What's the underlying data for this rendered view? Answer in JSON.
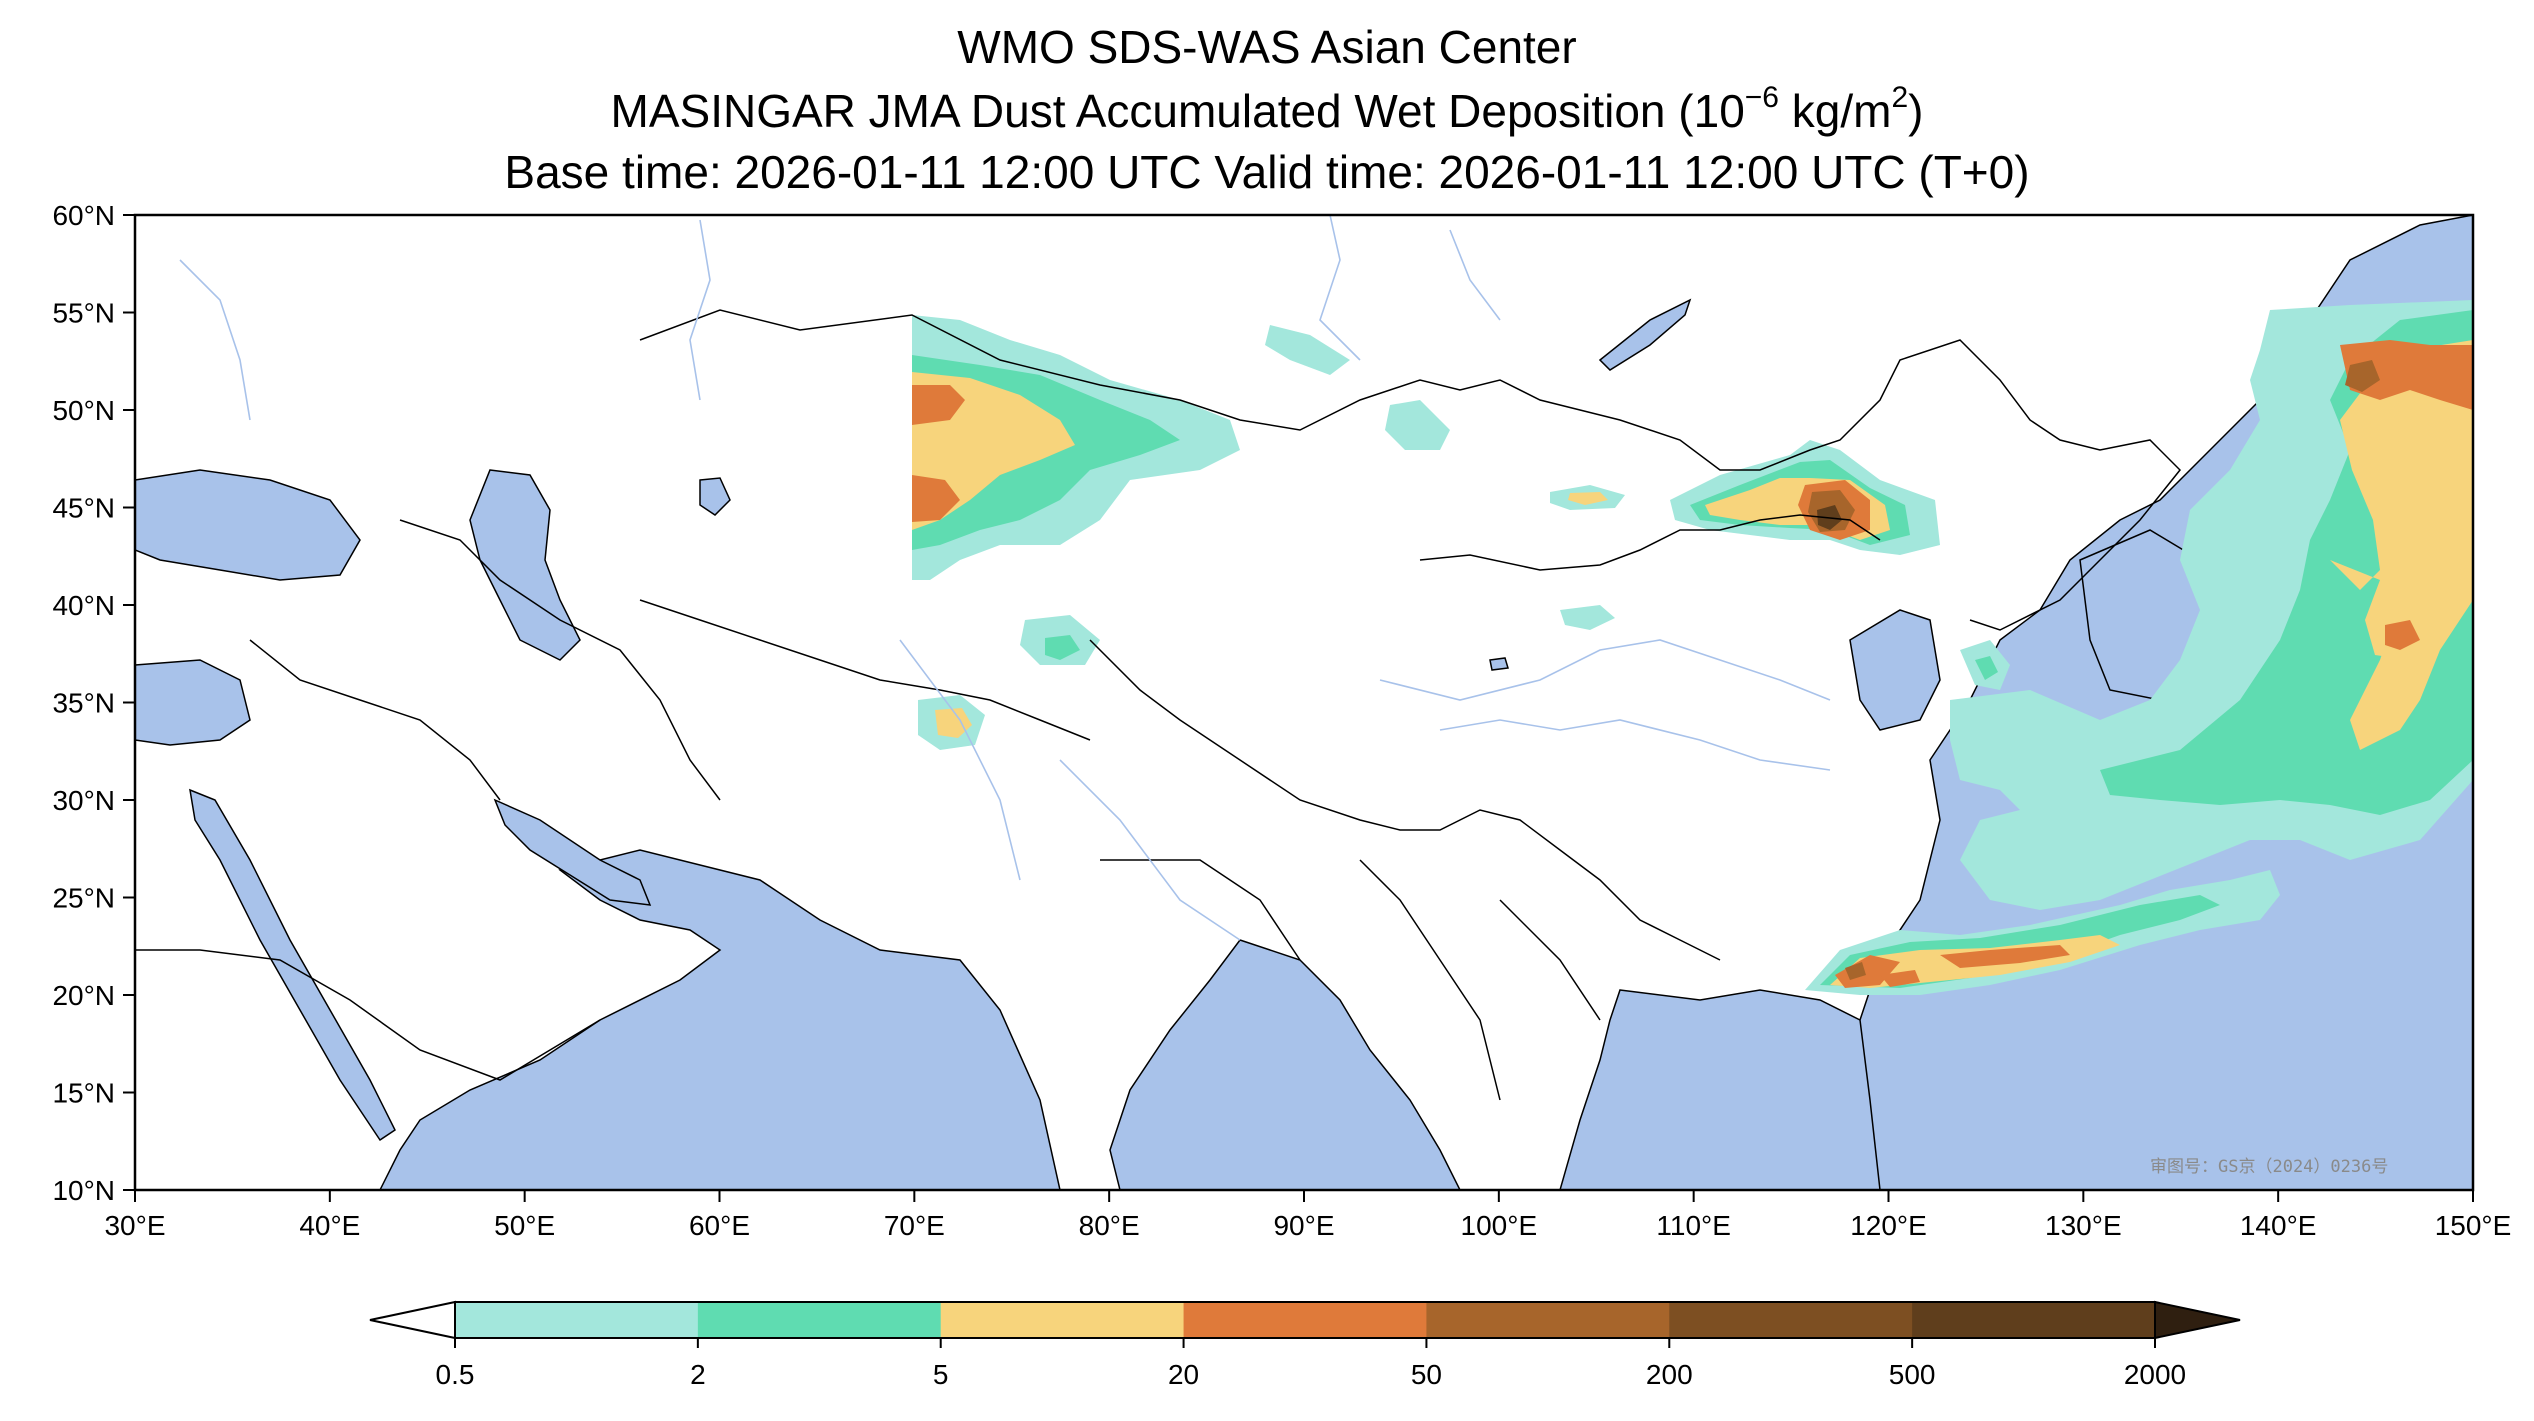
{
  "title": {
    "line1": "WMO SDS-WAS Asian Center",
    "line2_main": "MASINGAR JMA Dust Accumulated Wet Deposition (10",
    "line2_exp": "−6",
    "line2_unit": " kg/m",
    "line2_unit_exp": "2",
    "line2_end": ")",
    "line3": "Base time: 2026-01-11 12:00 UTC Valid time: 2026-01-11 12:00 UTC (T+0)"
  },
  "map": {
    "lon_ticks": [
      "30°E",
      "40°E",
      "50°E",
      "60°E",
      "70°E",
      "80°E",
      "90°E",
      "100°E",
      "110°E",
      "120°E",
      "130°E",
      "140°E",
      "150°E"
    ],
    "lat_ticks": [
      "60°N",
      "55°N",
      "50°N",
      "45°N",
      "40°N",
      "35°N",
      "30°N",
      "25°N",
      "20°N",
      "15°N",
      "10°N"
    ],
    "extent": {
      "lon_min": 30,
      "lon_max": 150,
      "lat_min": 10,
      "lat_max": 60
    },
    "stamp": "审图号：GS京（2024）0236号",
    "ocean_color": "#a8c2ea",
    "river_color": "#a8c2ea",
    "border_color": "#000000"
  },
  "colorbar": {
    "labels": [
      "0.5",
      "2",
      "5",
      "20",
      "50",
      "200",
      "500",
      "2000"
    ],
    "colors": [
      "#a3e7dc",
      "#5fdcb1",
      "#f7d47c",
      "#df7a3a",
      "#a7652b",
      "#7d4f22",
      "#5f3e1c",
      "#2f1f10"
    ],
    "extend": "both"
  }
}
